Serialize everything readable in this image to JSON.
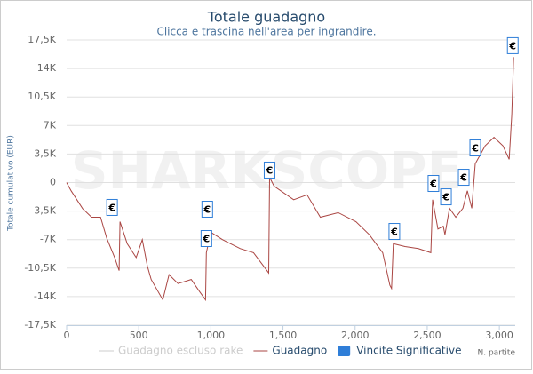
{
  "chart_data": {
    "type": "line",
    "title": "Totale guadagno",
    "subtitle": "Clicca e trascina nell'area per ingrandire.",
    "y_label": "Totale cumulativo (EUR)",
    "x_label": "N. partite",
    "watermark": "SHARKSCOPE",
    "flag_label": "€",
    "xlim": [
      0,
      3110
    ],
    "ylim": [
      -17500,
      17500
    ],
    "xticks": [
      0,
      500,
      {
        "value": 1000,
        "label": "1,000"
      },
      {
        "value": 1500,
        "label": "1,500"
      },
      {
        "value": 2000,
        "label": "2,000"
      },
      {
        "value": 2500,
        "label": "2,500"
      },
      {
        "value": 3000,
        "label": "3,000"
      }
    ],
    "yticks": [
      {
        "value": -17500,
        "label": "-17,5K"
      },
      {
        "value": -14000,
        "label": "-14K"
      },
      {
        "value": -10500,
        "label": "-10,5K"
      },
      {
        "value": -7000,
        "label": "-7K"
      },
      {
        "value": -3500,
        "label": "-3,5K"
      },
      0,
      {
        "value": 3500,
        "label": "3,5K"
      },
      {
        "value": 7000,
        "label": "7K"
      },
      {
        "value": 10500,
        "label": "10,5K"
      },
      {
        "value": 14000,
        "label": "14K"
      },
      {
        "value": 17500,
        "label": "17,5K"
      }
    ],
    "grid": true,
    "series": [
      {
        "name": "Guadagno escluso rake",
        "color": "#cccccc",
        "visible": false,
        "kind": "line",
        "x": [],
        "values": []
      },
      {
        "name": "Guadagno",
        "color": "#aa4643",
        "visible": true,
        "kind": "line",
        "x": [
          0,
          31,
          111,
          173,
          235,
          278,
          333,
          364,
          370,
          420,
          482,
          525,
          560,
          586,
          667,
          710,
          772,
          864,
          926,
          963,
          969,
          1000,
          1080,
          1204,
          1296,
          1389,
          1401,
          1407,
          1438,
          1574,
          1667,
          1759,
          1883,
          2006,
          2099,
          2191,
          2241,
          2253,
          2265,
          2346,
          2438,
          2525,
          2537,
          2574,
          2611,
          2623,
          2654,
          2698,
          2747,
          2778,
          2809,
          2833,
          2901,
          2963,
          3025,
          3068,
          3086,
          3099
        ],
        "values": [
          0,
          -1000,
          -3200,
          -4250,
          -4250,
          -6800,
          -9200,
          -10800,
          -4800,
          -7500,
          -9200,
          -7000,
          -10250,
          -11900,
          -14400,
          -11300,
          -12400,
          -11900,
          -13500,
          -14400,
          -8600,
          -6100,
          -7000,
          -8100,
          -8600,
          -10800,
          -11100,
          650,
          -440,
          -2100,
          -1500,
          -4250,
          -3700,
          -4800,
          -6400,
          -8600,
          -12600,
          -13000,
          -7500,
          -7850,
          -8100,
          -8600,
          -2100,
          -5700,
          -5350,
          -6400,
          -3150,
          -4250,
          -3150,
          -1000,
          -3150,
          2300,
          4500,
          5550,
          4500,
          2850,
          8300,
          15400
        ]
      },
      {
        "name": "Vincite Significative",
        "color": "#2f7ed8",
        "visible": true,
        "kind": "flags",
        "x": [
          315,
          975,
          969,
          1407,
          2272,
          2543,
          2630,
          2753,
          2833,
          3093
        ],
        "values": [
          -3050,
          -3270,
          -6870,
          1530,
          -6000,
          -110,
          -1750,
          650,
          4250,
          16800
        ]
      }
    ]
  }
}
